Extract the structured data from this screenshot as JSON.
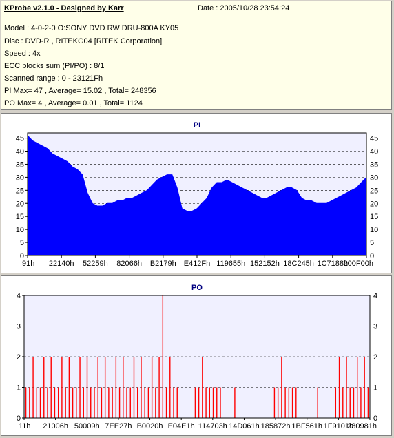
{
  "info": {
    "app_title": "KProbe v2.1.0 - Designed by Karr",
    "date": "Date : 2005/10/28 23:54:24",
    "model": "Model : 4-0-2-0 O:SONY    DVD RW DRU-800A  KY05",
    "disc": "Disc : DVD-R , RITEKG04 [RiTEK Corporation]",
    "speed": "Speed : 4x",
    "ecc": "ECC blocks sum (PI/PO) : 8/1",
    "scanned_range": "Scanned range : 0 - 23121Fh",
    "pi_stats": "PI Max= 47 , Average= 15.02 , Total= 248356",
    "po_stats": "PO Max= 4 , Average= 0.01 , Total= 1124"
  },
  "colors": {
    "pi_fill": "#0000ff",
    "po_fill": "#ff0000",
    "plot_bg": "#f0f0ff",
    "panel_bg": "#ffffe9",
    "window_bg": "#d4d0c8"
  },
  "chart_data": [
    {
      "type": "area",
      "title": "PI",
      "ylim": [
        0,
        47
      ],
      "y_ticks": [
        0,
        5,
        10,
        15,
        20,
        25,
        30,
        35,
        40,
        45
      ],
      "x_tick_labels": [
        "91h",
        "22140h",
        "52259h",
        "82066h",
        "B2179h",
        "E412Fh",
        "119655h",
        "152152h",
        "18C245h",
        "1C7188h",
        "200F00h"
      ],
      "grid": true,
      "series": [
        {
          "values": [
            46,
            44,
            43,
            42,
            41,
            39,
            38,
            37,
            36,
            34,
            33,
            31,
            24,
            20,
            19,
            19,
            20,
            20,
            21,
            21,
            22,
            22,
            23,
            24,
            25,
            27,
            29,
            30,
            31,
            31,
            26,
            18,
            17,
            17,
            18,
            20,
            22,
            26,
            28,
            28,
            29,
            28,
            27,
            26,
            25,
            24,
            23,
            22,
            22,
            23,
            24,
            25,
            26,
            26,
            25,
            22,
            21,
            21,
            20,
            20,
            20,
            21,
            22,
            23,
            24,
            25,
            26,
            28,
            30
          ]
        }
      ]
    },
    {
      "type": "bar",
      "title": "PO",
      "ylim": [
        0,
        4
      ],
      "y_ticks": [
        0,
        1,
        2,
        3,
        4
      ],
      "x_tick_labels": [
        "11h",
        "21006h",
        "50009h",
        "7EE27h",
        "B0020h",
        "E04E1h",
        "114703h",
        "14D061h",
        "185872h",
        "1BF561h",
        "1F9101h",
        "230981h"
      ],
      "grid": true,
      "series": [
        {
          "values": [
            1,
            1,
            2,
            1,
            1,
            2,
            1,
            2,
            1,
            1,
            2,
            1,
            2,
            1,
            1,
            2,
            1,
            2,
            1,
            1,
            2,
            1,
            2,
            1,
            1,
            2,
            1,
            2,
            1,
            1,
            2,
            1,
            2,
            1,
            1,
            2,
            1,
            2,
            4,
            1,
            2,
            1,
            1,
            0,
            0,
            0,
            0,
            1,
            1,
            2,
            1,
            1,
            1,
            1,
            1,
            0,
            0,
            0,
            1,
            0,
            0,
            0,
            0,
            0,
            0,
            0,
            0,
            0,
            0,
            1,
            1,
            2,
            1,
            1,
            1,
            1,
            0,
            0,
            0,
            0,
            0,
            1,
            0,
            0,
            0,
            0,
            1,
            2,
            1,
            2,
            1,
            1,
            2,
            1,
            2,
            1
          ]
        }
      ]
    }
  ]
}
